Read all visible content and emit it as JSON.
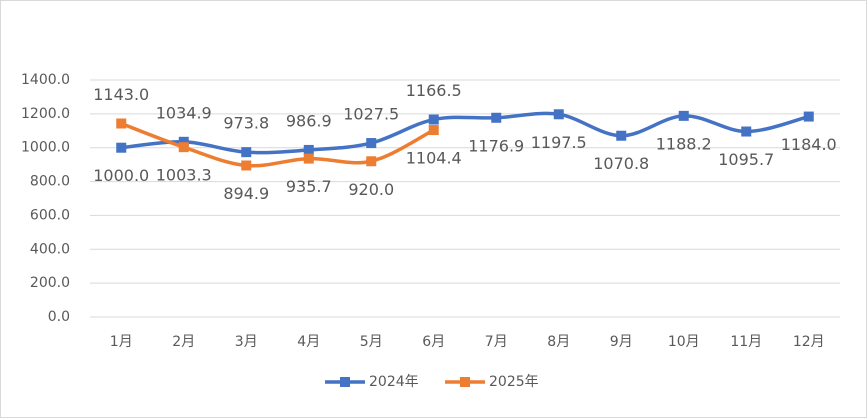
{
  "chart_data": {
    "type": "line",
    "categories": [
      "1月",
      "2月",
      "3月",
      "4月",
      "5月",
      "6月",
      "7月",
      "8月",
      "9月",
      "10月",
      "11月",
      "12月"
    ],
    "series": [
      {
        "name": "2024年",
        "color": "#4472c4",
        "values": [
          1000.0,
          1034.9,
          973.8,
          986.9,
          1027.5,
          1166.5,
          1176.9,
          1197.5,
          1070.8,
          1188.2,
          1095.7,
          1184.0
        ],
        "value_labels": [
          "1000.0",
          "1034.9",
          "973.8",
          "986.9",
          "1027.5",
          "1166.5",
          "1176.9",
          "1197.5",
          "1070.8",
          "1188.2",
          "1095.7",
          "1184.0"
        ]
      },
      {
        "name": "2025年",
        "color": "#ed7d31",
        "values": [
          1143.0,
          1003.3,
          894.9,
          935.7,
          920.0,
          1104.4,
          null,
          null,
          null,
          null,
          null,
          null
        ],
        "value_labels": [
          "1143.0",
          "1003.3",
          "894.9",
          "935.7",
          "920.0",
          "1104.4",
          null,
          null,
          null,
          null,
          null,
          null
        ]
      }
    ],
    "ylim": [
      0,
      1400
    ],
    "yticks": [
      {
        "value": 0,
        "label": "0.0"
      },
      {
        "value": 200,
        "label": "200.0"
      },
      {
        "value": 400,
        "label": "400.0"
      },
      {
        "value": 600,
        "label": "600.0"
      },
      {
        "value": 800,
        "label": "800.0"
      },
      {
        "value": 1000,
        "label": "1000.0"
      },
      {
        "value": 1200,
        "label": "1200.0"
      },
      {
        "value": 1400,
        "label": "1400.0"
      }
    ],
    "grid": true,
    "legend": "bottom"
  }
}
